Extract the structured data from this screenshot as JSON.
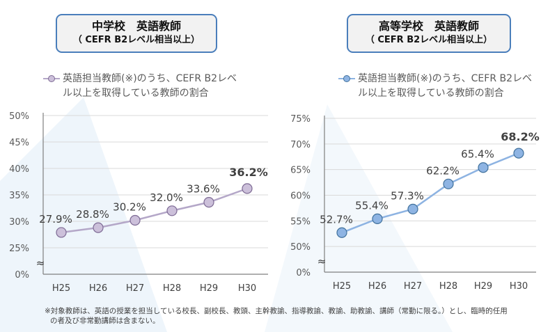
{
  "left_panel": {
    "title_line1": "中学校　英語教師",
    "title_line2": "（ CEFR B2レベル相当以上）",
    "legend_line1": "英語担当教師(※)のうち、CEFR B2レベ",
    "legend_line2": "ル以上を取得している教師の割合"
  },
  "right_panel": {
    "title_line1": "高等学校　英語教師",
    "title_line2": "（ CEFR B2レベル相当以上）",
    "legend_line1": "英語担当教師(※)のうち、CEFR B2レベ",
    "legend_line2": "ル以上を取得している教師の割合"
  },
  "footnote_line1": "※対象教師は、英語の授業を担当している校長、副校長、教頭、主幹教諭、指導教諭、教諭、助教諭、講師（常勤に限る。）とし、臨時的任用",
  "footnote_line2": "の者及び非常勤講師は含まない。",
  "chart_data": [
    {
      "type": "line",
      "categories": [
        "H25",
        "H26",
        "H27",
        "H28",
        "H29",
        "H30"
      ],
      "series": [
        {
          "name": "英語担当教師(※)のうち、CEFR B2レベル以上を取得している教師の割合",
          "values": [
            27.9,
            28.8,
            30.2,
            32.0,
            33.6,
            36.2
          ]
        }
      ],
      "data_labels": [
        "27.9%",
        "28.8%",
        "30.2%",
        "32.0%",
        "33.6%",
        "36.2%"
      ],
      "y_ticks": [
        "0%",
        "25%",
        "30%",
        "35%",
        "40%",
        "45%",
        "50%"
      ],
      "ylim": [
        25,
        50
      ],
      "axis_break": true,
      "grid": true,
      "legend": "top",
      "colors": {
        "line": "#b4a7c8",
        "marker_fill": "#ccc0da",
        "marker_stroke": "#7d6a94"
      }
    },
    {
      "type": "line",
      "categories": [
        "H25",
        "H26",
        "H27",
        "H28",
        "H29",
        "H30"
      ],
      "series": [
        {
          "name": "英語担当教師(※)のうち、CEFR B2レベル以上を取得している教師の割合",
          "values": [
            52.7,
            55.4,
            57.3,
            62.2,
            65.4,
            68.2
          ]
        }
      ],
      "data_labels": [
        "52.7%",
        "55.4%",
        "57.3%",
        "62.2%",
        "65.4%",
        "68.2%"
      ],
      "y_ticks": [
        "0%",
        "50%",
        "55%",
        "60%",
        "65%",
        "70%",
        "75%"
      ],
      "ylim": [
        50,
        75
      ],
      "axis_break": true,
      "grid": true,
      "legend": "top",
      "colors": {
        "line": "#8db3e2",
        "marker_fill": "#8eb4e3",
        "marker_stroke": "#41719c"
      }
    }
  ]
}
